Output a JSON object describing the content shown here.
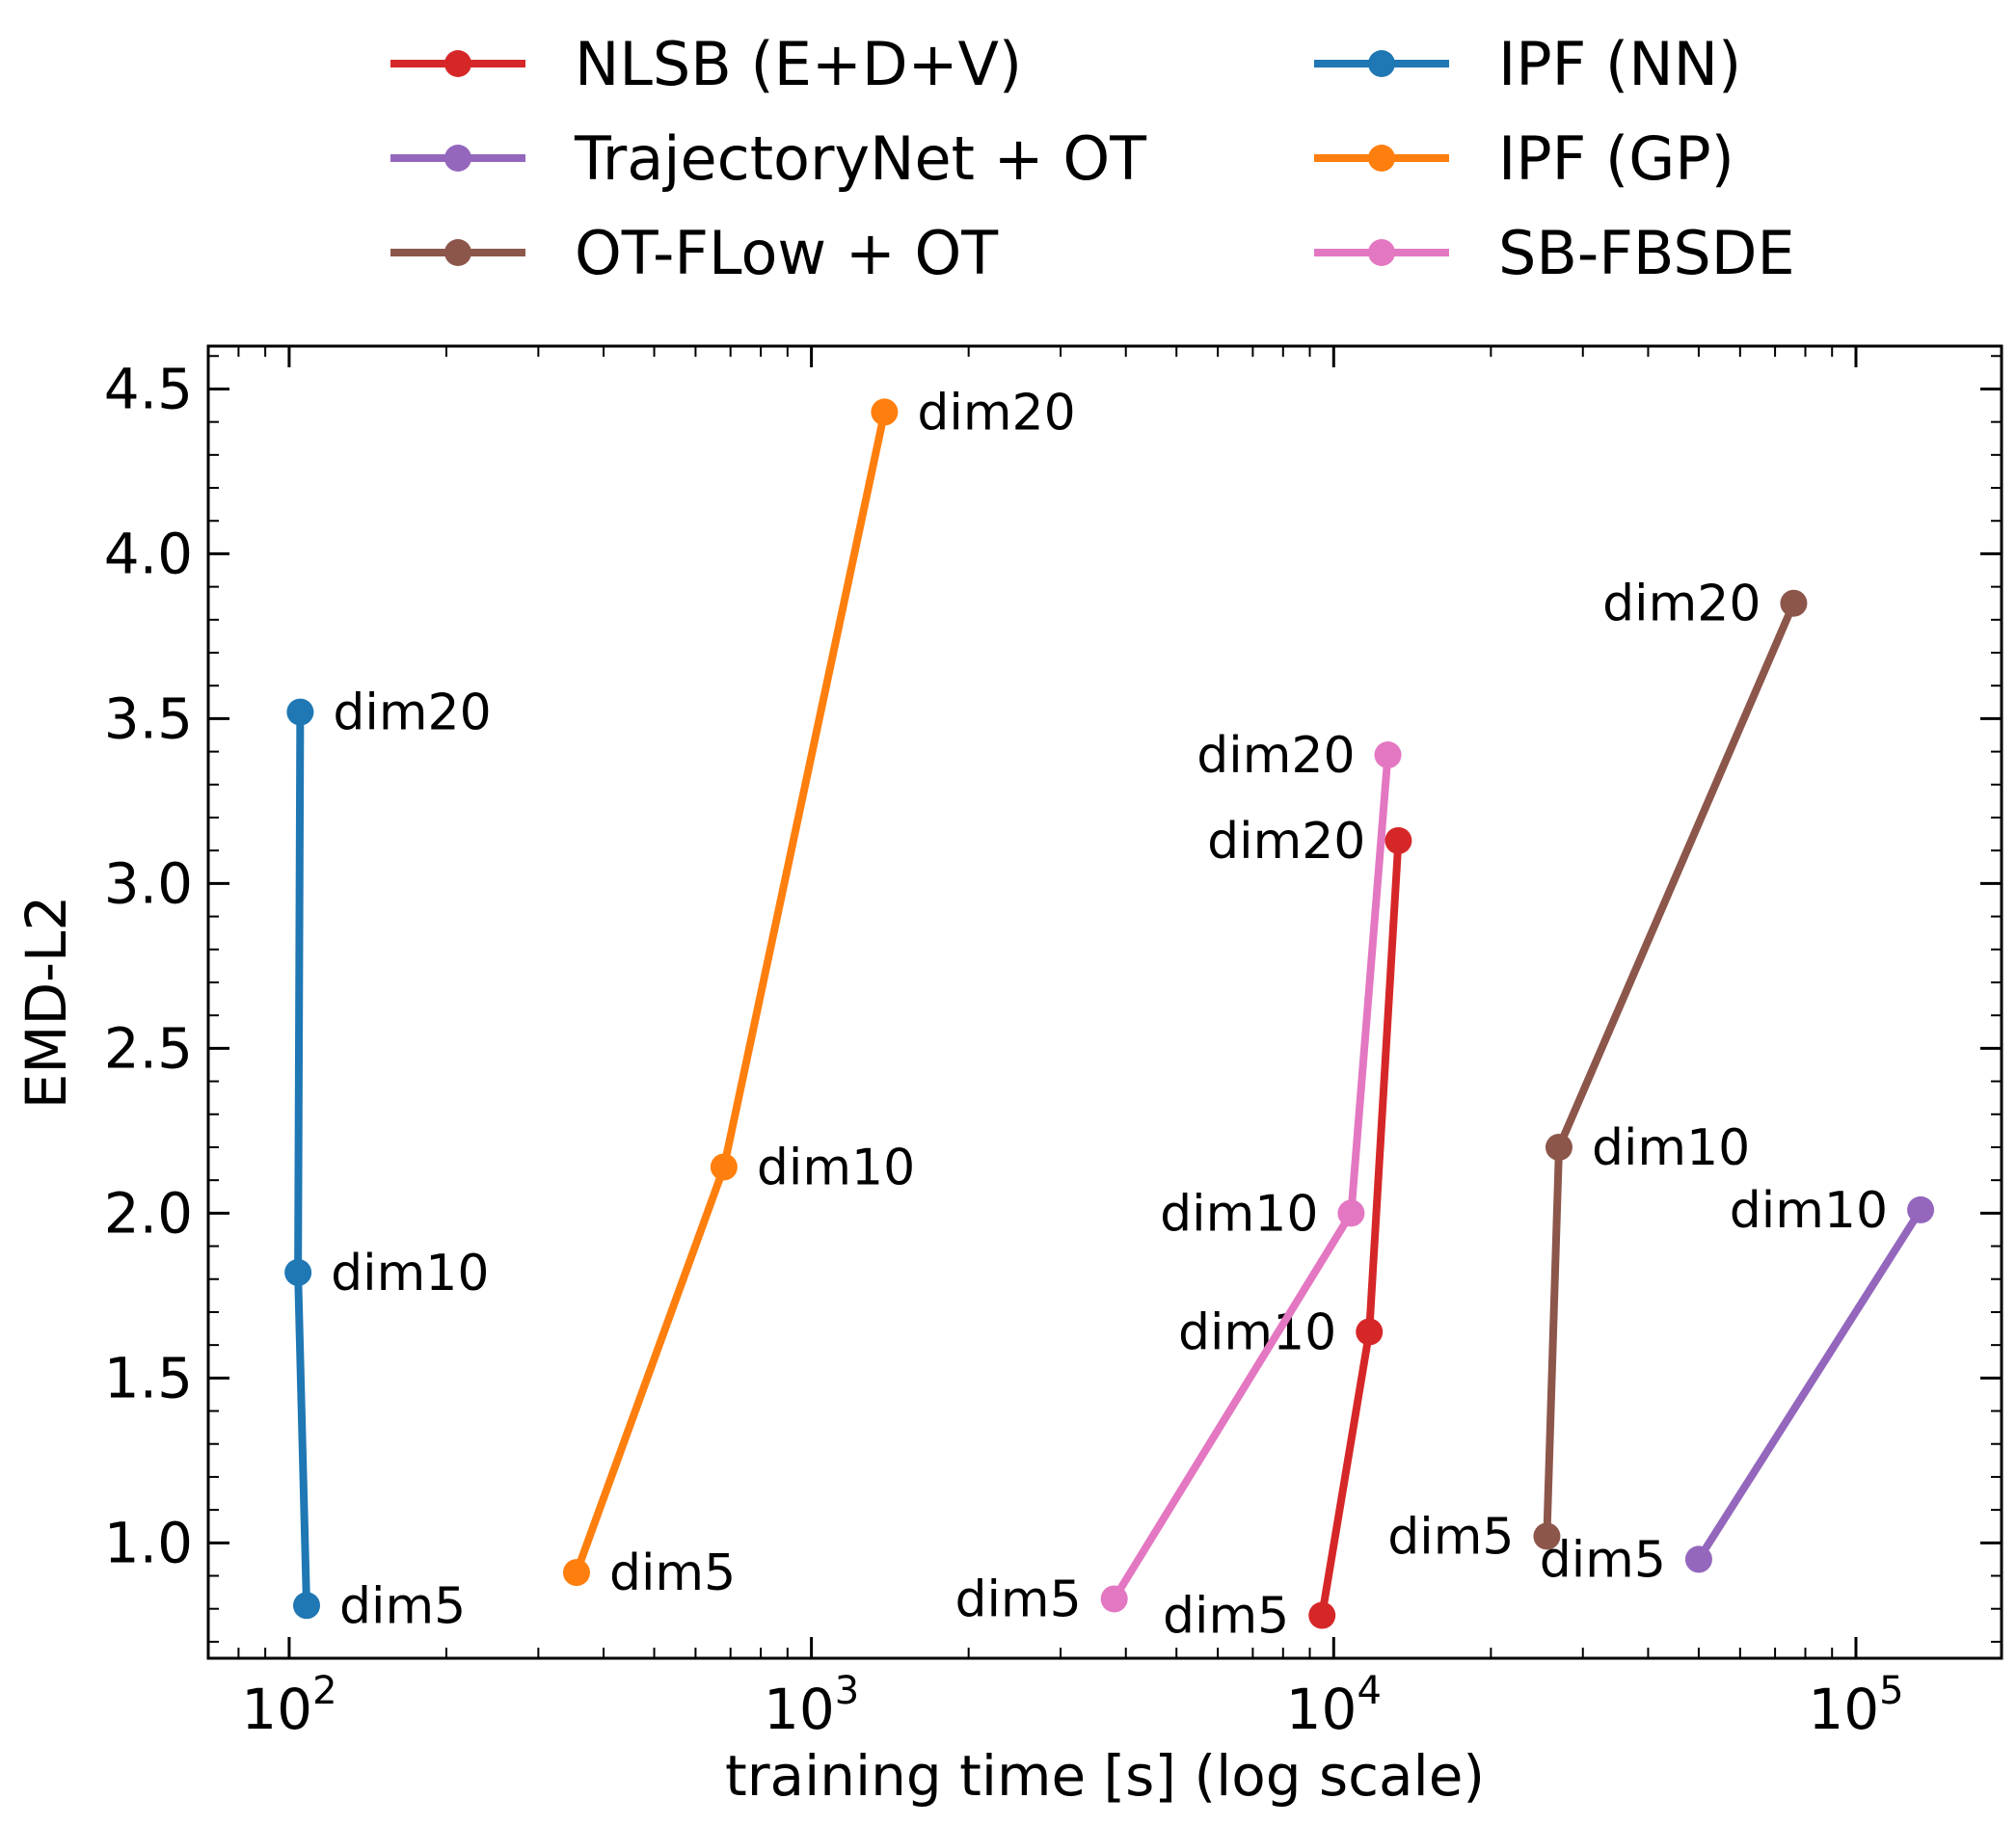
{
  "chart_data": {
    "type": "line",
    "title": "",
    "xlabel": "training time [s] (log scale)",
    "ylabel": "EMD-L2",
    "xscale": "log",
    "xlim": [
      70,
      190000
    ],
    "ylim": [
      0.65,
      4.63
    ],
    "x_ticks": [
      {
        "value": 100,
        "base": "10",
        "exp": "2"
      },
      {
        "value": 1000,
        "base": "10",
        "exp": "3"
      },
      {
        "value": 10000,
        "base": "10",
        "exp": "4"
      },
      {
        "value": 100000,
        "base": "10",
        "exp": "5"
      }
    ],
    "y_ticks": [
      {
        "value": 1.0,
        "label": "1.0"
      },
      {
        "value": 1.5,
        "label": "1.5"
      },
      {
        "value": 2.0,
        "label": "2.0"
      },
      {
        "value": 2.5,
        "label": "2.5"
      },
      {
        "value": 3.0,
        "label": "3.0"
      },
      {
        "value": 3.5,
        "label": "3.5"
      },
      {
        "value": 4.0,
        "label": "4.0"
      },
      {
        "value": 4.5,
        "label": "4.5"
      }
    ],
    "grid": false,
    "legend_position": "top, outside plot, two columns",
    "series": [
      {
        "name": "NLSB (E+D+V)",
        "color": "#d62728",
        "points": [
          {
            "x": 9500,
            "y": 0.78,
            "label": "dim5",
            "anchor": "end"
          },
          {
            "x": 11700,
            "y": 1.64,
            "label": "dim10",
            "anchor": "end"
          },
          {
            "x": 13300,
            "y": 3.13,
            "label": "dim20",
            "anchor": "end"
          }
        ]
      },
      {
        "name": "TrajectoryNet + OT",
        "color": "#9467bd",
        "points": [
          {
            "x": 50000,
            "y": 0.95,
            "label": "dim5",
            "anchor": "end"
          },
          {
            "x": 133000,
            "y": 2.01,
            "label": "dim10",
            "anchor": "end"
          }
        ]
      },
      {
        "name": "OT-FLow + OT",
        "color": "#8c564b",
        "points": [
          {
            "x": 25600,
            "y": 1.02,
            "label": "dim5",
            "anchor": "end"
          },
          {
            "x": 27000,
            "y": 2.2,
            "label": "dim10",
            "anchor": "start"
          },
          {
            "x": 76000,
            "y": 3.85,
            "label": "dim20",
            "anchor": "end"
          }
        ]
      },
      {
        "name": "IPF (NN)",
        "color": "#1f77b4",
        "points": [
          {
            "x": 108,
            "y": 0.81,
            "label": "dim5",
            "anchor": "start"
          },
          {
            "x": 104,
            "y": 1.82,
            "label": "dim10",
            "anchor": "start"
          },
          {
            "x": 105,
            "y": 3.52,
            "label": "dim20",
            "anchor": "start"
          }
        ]
      },
      {
        "name": "IPF (GP)",
        "color": "#ff7f0e",
        "points": [
          {
            "x": 355,
            "y": 0.91,
            "label": "dim5",
            "anchor": "start"
          },
          {
            "x": 680,
            "y": 2.14,
            "label": "dim10",
            "anchor": "start"
          },
          {
            "x": 1380,
            "y": 4.43,
            "label": "dim20",
            "anchor": "start"
          }
        ]
      },
      {
        "name": "SB-FBSDE",
        "color": "#e377c2",
        "points": [
          {
            "x": 3800,
            "y": 0.83,
            "label": "dim5",
            "anchor": "end"
          },
          {
            "x": 10800,
            "y": 2.0,
            "label": "dim10",
            "anchor": "end"
          },
          {
            "x": 12700,
            "y": 3.39,
            "label": "dim20",
            "anchor": "end"
          }
        ]
      }
    ]
  }
}
